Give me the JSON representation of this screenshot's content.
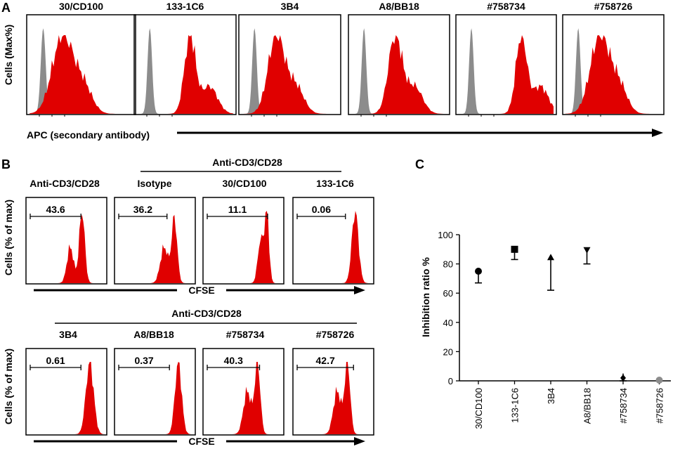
{
  "panel_letters": {
    "a": "A",
    "b": "B",
    "c": "C"
  },
  "panel_a": {
    "y_label": "Cells (Max%)",
    "x_label": "APC (secondary antibody)",
    "samples": [
      "30/CD100",
      "133-1C6",
      "3B4",
      "A8/BB18",
      "#758734",
      "#758726"
    ]
  },
  "panel_b": {
    "y_label": "Cells (% of max)",
    "x_label": "CFSE",
    "row1": {
      "ungrouped": "Anti-CD3/CD28",
      "group_label": "Anti-CD3/CD28",
      "samples": [
        "Isotype",
        "30/CD100",
        "133-1C6"
      ],
      "gates": [
        "43.6",
        "36.2",
        "11.1",
        "0.06"
      ]
    },
    "row2": {
      "group_label": "Anti-CD3/CD28",
      "samples": [
        "3B4",
        "A8/BB18",
        "#758734",
        "#758726"
      ],
      "gates": [
        "0.61",
        "0.37",
        "40.3",
        "42.7"
      ]
    }
  },
  "chart_data": {
    "type": "scatter",
    "title": "",
    "xlabel": "",
    "ylabel": "Inhibition ratio %",
    "ylim": [
      0,
      100
    ],
    "yticks": [
      "0",
      "20",
      "40",
      "60",
      "80",
      "100"
    ],
    "categories": [
      "30/CD100",
      "133-1C6",
      "3B4",
      "A8/BB18",
      "#758734",
      "#758726"
    ],
    "values": [
      75,
      90,
      84,
      90,
      2,
      0
    ],
    "error_low": [
      67,
      83,
      62,
      80,
      0,
      0
    ],
    "error_high": [
      75,
      90,
      84,
      90,
      5,
      0
    ],
    "markers": [
      "circle",
      "square",
      "triangle-up",
      "triangle-down",
      "diamond",
      "circle-grey"
    ]
  },
  "colors": {
    "red": "#e00000",
    "grey": "#8c8c8c",
    "black": "#000000"
  }
}
